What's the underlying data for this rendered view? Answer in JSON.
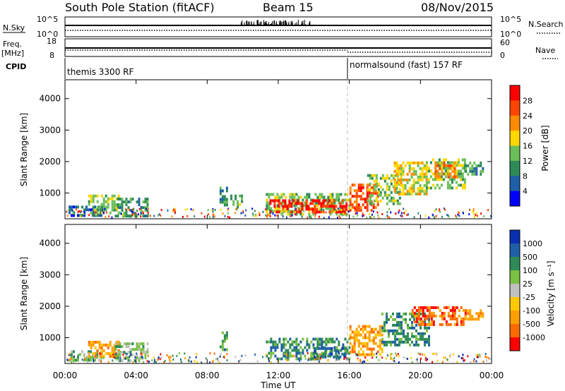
{
  "header": {
    "station": "South Pole Station (fitACF)",
    "beam": "Beam 15",
    "date": "08/Nov/2015"
  },
  "strip_labels": {
    "nsky": "N.Sky",
    "nsky_ticks": [
      "10^5",
      "10^0"
    ],
    "nsearch": "N.Search",
    "nsearch_ticks": [
      "10^5",
      "10^0"
    ],
    "freq_top": "Freq.",
    "freq_unit": "[MHz]",
    "freq_ticks": [
      "18",
      "8"
    ],
    "nave": "Nave",
    "nave_ticks": [
      "60",
      "0"
    ],
    "cpid": "CPID"
  },
  "cpid_segments": [
    {
      "label": "themis 3300 RF",
      "start_hour": 0
    },
    {
      "label": "normalsound (fast) 157 RF",
      "start_hour": 16
    }
  ],
  "x_axis": {
    "label": "Time UT",
    "ticks": [
      "00:00",
      "04:00",
      "08:00",
      "12:00",
      "16:00",
      "20:00",
      "00:00"
    ],
    "range_hours": [
      0,
      24
    ]
  },
  "colors": {
    "power": [
      "#0000ff",
      "#1f5fa8",
      "#2e8b57",
      "#6bbf59",
      "#ffd700",
      "#ff8c00",
      "#ff4500",
      "#ff0000"
    ],
    "velocity": [
      "#ff0000",
      "#ff6a00",
      "#ff9f00",
      "#ffc800",
      "#c0c0c0",
      "#7ac143",
      "#2e8b57",
      "#1f5fa8",
      "#0a2fb0"
    ]
  },
  "chart_data": [
    {
      "type": "heatmap",
      "name": "power",
      "ylabel": "Slant Range [km]",
      "yticks": [
        1000,
        2000,
        3000,
        4000
      ],
      "ylim": [
        180,
        4600
      ],
      "xlim": [
        0,
        24
      ],
      "colorbar": {
        "label": "Power [dB]",
        "ticks": [
          "28",
          "24",
          "20",
          "16",
          "12",
          "8",
          "4"
        ]
      },
      "regions": [
        {
          "t": [
            0.2,
            2.2
          ],
          "r": [
            250,
            600
          ],
          "level": 1
        },
        {
          "t": [
            1.3,
            3.0
          ],
          "r": [
            400,
            950
          ],
          "level": 3
        },
        {
          "t": [
            2.8,
            4.6
          ],
          "r": [
            300,
            850
          ],
          "level": 2
        },
        {
          "t": [
            8.7,
            9.1
          ],
          "r": [
            600,
            1200
          ],
          "level": 2
        },
        {
          "t": [
            9.3,
            9.9
          ],
          "r": [
            550,
            950
          ],
          "level": 3
        },
        {
          "t": [
            11.3,
            16.0
          ],
          "r": [
            300,
            1000
          ],
          "level": 3
        },
        {
          "t": [
            11.5,
            15.9
          ],
          "r": [
            380,
            800
          ],
          "level": 7
        },
        {
          "t": [
            16.0,
            17.6
          ],
          "r": [
            450,
            1300
          ],
          "level": 6
        },
        {
          "t": [
            17.0,
            18.8
          ],
          "r": [
            700,
            1600
          ],
          "level": 3
        },
        {
          "t": [
            18.5,
            20.3
          ],
          "r": [
            1000,
            2000
          ],
          "level": 4
        },
        {
          "t": [
            20.3,
            22.5
          ],
          "r": [
            1200,
            2100
          ],
          "level": 3
        },
        {
          "t": [
            20.8,
            22.0
          ],
          "r": [
            1500,
            2000
          ],
          "level": 5
        },
        {
          "t": [
            22.5,
            23.5
          ],
          "r": [
            1600,
            2000
          ],
          "level": 2
        }
      ]
    },
    {
      "type": "heatmap",
      "name": "velocity",
      "ylabel": "Slant Range [km]",
      "yticks": [
        1000,
        2000,
        3000,
        4000
      ],
      "ylim": [
        180,
        4600
      ],
      "xlim": [
        0,
        24
      ],
      "colorbar": {
        "label": "Velocity [m s⁻¹]",
        "ticks": [
          "1000",
          "500",
          "100",
          "25",
          "-25",
          "-100",
          "-500",
          "-1000"
        ]
      },
      "regions": [
        {
          "t": [
            0.2,
            2.2
          ],
          "r": [
            250,
            600
          ],
          "level": 5
        },
        {
          "t": [
            1.3,
            3.0
          ],
          "r": [
            400,
            900
          ],
          "level": 2
        },
        {
          "t": [
            2.8,
            4.6
          ],
          "r": [
            300,
            850
          ],
          "level": 5
        },
        {
          "t": [
            8.7,
            9.1
          ],
          "r": [
            600,
            1200
          ],
          "level": 6
        },
        {
          "t": [
            11.3,
            16.0
          ],
          "r": [
            300,
            1000
          ],
          "level": 6
        },
        {
          "t": [
            14.0,
            15.8
          ],
          "r": [
            400,
            700
          ],
          "level": 7
        },
        {
          "t": [
            16.0,
            17.8
          ],
          "r": [
            450,
            1400
          ],
          "level": 2
        },
        {
          "t": [
            17.8,
            20.5
          ],
          "r": [
            800,
            1800
          ],
          "level": 6
        },
        {
          "t": [
            19.5,
            22.5
          ],
          "r": [
            1400,
            2000
          ],
          "level": 1
        },
        {
          "t": [
            22.5,
            23.5
          ],
          "r": [
            1600,
            1900
          ],
          "level": 2
        }
      ]
    }
  ]
}
